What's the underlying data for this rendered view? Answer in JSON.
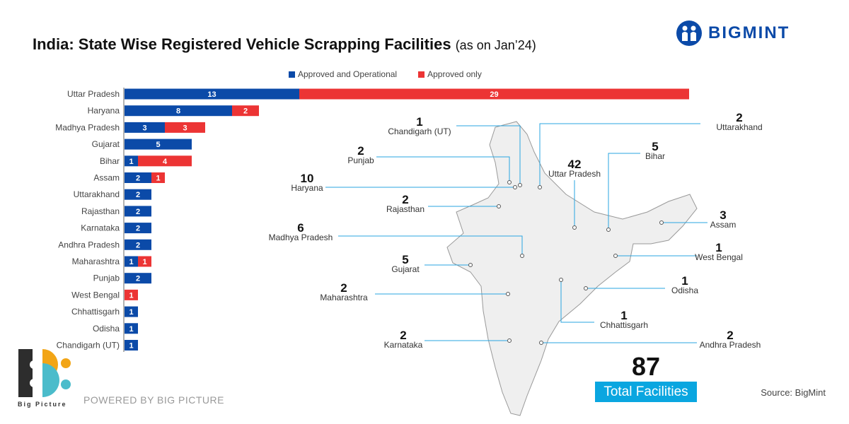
{
  "title": "India: State Wise Registered Vehicle Scrapping Facilities",
  "subtitle": "(as on Jan’24)",
  "brand": "BIGMINT",
  "source": "Source: BigMint",
  "powered_by": "POWERED BY BIG PICTURE",
  "big_picture_logo": "Big Picture",
  "total": {
    "value": "87",
    "label": "Total Facilities"
  },
  "colors": {
    "operational": "#0b4aa8",
    "approved_only": "#ec3434",
    "total_box": "#0aa6e0"
  },
  "chart_data": {
    "type": "bar",
    "orientation": "horizontal",
    "stacked": true,
    "legend": "top",
    "categories": [
      "Uttar Pradesh",
      "Haryana",
      "Madhya Pradesh",
      "Gujarat",
      "Bihar",
      "Assam",
      "Uttarakhand",
      "Rajasthan",
      "Karnataka",
      "Andhra Pradesh",
      "Maharashtra",
      "Punjab",
      "West Bengal",
      "Chhattisgarh",
      "Odisha",
      "Chandigarh (UT)"
    ],
    "series": [
      {
        "name": "Approved and Operational",
        "values": [
          13,
          8,
          3,
          5,
          1,
          2,
          2,
          2,
          2,
          2,
          1,
          2,
          0,
          1,
          1,
          1
        ]
      },
      {
        "name": "Approved only",
        "values": [
          29,
          2,
          3,
          0,
          4,
          1,
          0,
          0,
          0,
          0,
          1,
          0,
          1,
          0,
          0,
          0
        ]
      }
    ]
  },
  "map_labels": [
    {
      "state": "Chandigarh (UT)",
      "value": "1"
    },
    {
      "state": "Uttarakhand",
      "value": "2"
    },
    {
      "state": "Punjab",
      "value": "2"
    },
    {
      "state": "Uttar Pradesh",
      "value": "42"
    },
    {
      "state": "Bihar",
      "value": "5"
    },
    {
      "state": "Haryana",
      "value": "10"
    },
    {
      "state": "Rajasthan",
      "value": "2"
    },
    {
      "state": "Assam",
      "value": "3"
    },
    {
      "state": "Madhya Pradesh",
      "value": "6"
    },
    {
      "state": "West Bengal",
      "value": "1"
    },
    {
      "state": "Gujarat",
      "value": "5"
    },
    {
      "state": "Maharashtra",
      "value": "2"
    },
    {
      "state": "Odisha",
      "value": "1"
    },
    {
      "state": "Chhattisgarh",
      "value": "1"
    },
    {
      "state": "Karnataka",
      "value": "2"
    },
    {
      "state": "Andhra Pradesh",
      "value": "2"
    }
  ]
}
